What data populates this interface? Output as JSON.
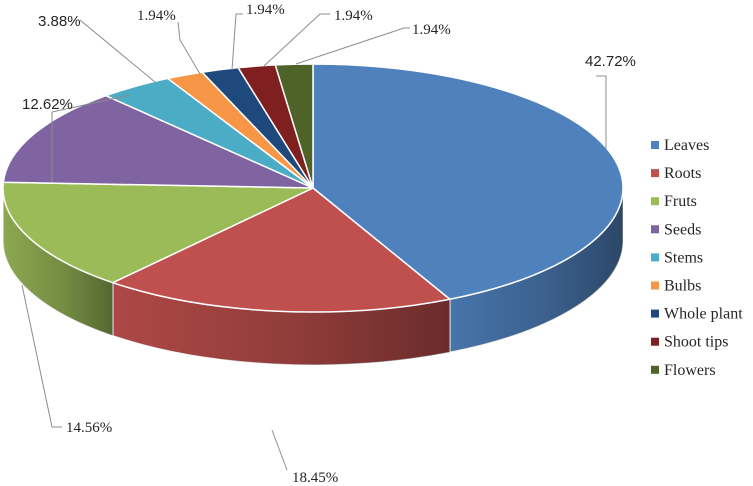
{
  "chart_data": {
    "type": "pie",
    "style": "3d",
    "legend_position": "right",
    "slices": [
      {
        "label": "Leaves",
        "value": 42.72,
        "value_label": "42.72%",
        "color": "#4F81BD"
      },
      {
        "label": "Roots",
        "value": 18.45,
        "value_label": "18.45%",
        "color": "#C0504D"
      },
      {
        "label": "Fruts",
        "value": 14.56,
        "value_label": "14.56%",
        "color": "#9BBB59"
      },
      {
        "label": "Seeds",
        "value": 12.62,
        "value_label": "12.62%",
        "color": "#8064A2"
      },
      {
        "label": "Stems",
        "value": 3.88,
        "value_label": "3.88%",
        "color": "#4BACC6"
      },
      {
        "label": "Bulbs",
        "value": 1.94,
        "value_label": "1.94%",
        "color": "#F79646"
      },
      {
        "label": "Whole plant",
        "value": 1.94,
        "value_label": "1.94%",
        "color": "#1F497D"
      },
      {
        "label": "Shoot tips",
        "value": 1.94,
        "value_label": "1.94%",
        "color": "#7F1F1F"
      },
      {
        "label": "Flowers",
        "value": 1.94,
        "value_label": "1.94%",
        "color": "#4F6228"
      }
    ]
  }
}
